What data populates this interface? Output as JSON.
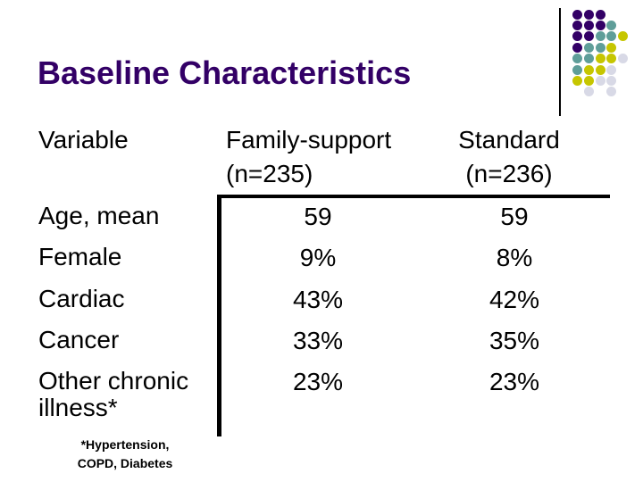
{
  "slide": {
    "title": "Baseline Characteristics",
    "title_color": "#330066"
  },
  "table": {
    "variable_header": "Variable",
    "columns": [
      {
        "name": "Family-support",
        "n_label": "(n=235)"
      },
      {
        "name": "Standard",
        "n_label": "(n=236)"
      }
    ],
    "rows": [
      {
        "label": "Age, mean",
        "family_support": "59",
        "standard": "59"
      },
      {
        "label": "Female",
        "family_support": "9%",
        "standard": "8%"
      },
      {
        "label": "Cardiac",
        "family_support": "43%",
        "standard": "42%"
      },
      {
        "label": "Cancer",
        "family_support": "33%",
        "standard": "35%"
      },
      {
        "label": "Other chronic illness*",
        "family_support": "23%",
        "standard": "23%"
      }
    ],
    "footnote_line1": "*Hypertension,",
    "footnote_line2": "COPD, Diabetes"
  },
  "decoration": {
    "palette": {
      "P": "#330066",
      "T": "#5F9E99",
      "Y": "#C6C600",
      "G": "#D8D9E6"
    },
    "dot_rows": [
      "PPP..",
      "PPPT.",
      "PPTTY",
      "PTTY.",
      "TTYYG",
      "TYYG.",
      "YYGG.",
      ".G.G."
    ]
  }
}
